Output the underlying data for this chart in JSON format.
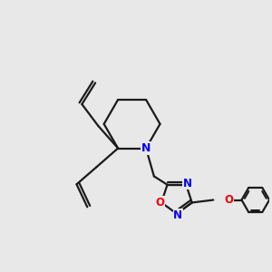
{
  "background_color": "#e8e8e8",
  "bond_color": "#1a1a1a",
  "N_color": "#0000ee",
  "O_color": "#ee0000",
  "line_width": 1.6,
  "figsize": [
    3.0,
    3.0
  ],
  "dpi": 100,
  "xlim": [
    0,
    10
  ],
  "ylim": [
    0,
    10
  ]
}
